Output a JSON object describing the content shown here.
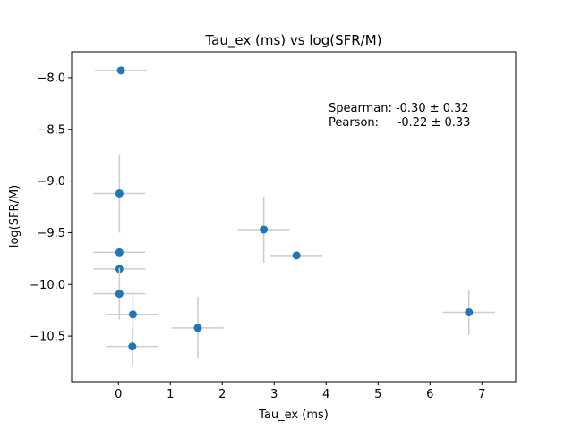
{
  "chart_data": {
    "type": "scatter",
    "title": "Tau_ex (ms) vs log(SFR/M)",
    "xlabel": "Tau_ex (ms)",
    "ylabel": "log(SFR/M)",
    "xlim": [
      -0.9,
      7.65
    ],
    "ylim": [
      -10.94,
      -7.75
    ],
    "xticks": [
      0,
      1,
      2,
      3,
      4,
      5,
      6,
      7
    ],
    "yticks": [
      -10.5,
      -10.0,
      -9.5,
      -9.0,
      -8.5,
      -8.0
    ],
    "ytick_labels": [
      "−10.5",
      "−10.0",
      "−9.5",
      "−9.0",
      "−8.5",
      "−8.0"
    ],
    "grid": false,
    "point_color": "#1f77b4",
    "errorbar_color": "#cccccc",
    "points": [
      {
        "x": 0.05,
        "y": -7.93,
        "xerr": 0.5,
        "yerr": 0.0
      },
      {
        "x": 0.02,
        "y": -9.12,
        "xerr": 0.5,
        "yerr": 0.38
      },
      {
        "x": 0.02,
        "y": -9.69,
        "xerr": 0.5,
        "yerr": 0.0
      },
      {
        "x": 0.02,
        "y": -9.85,
        "xerr": 0.5,
        "yerr": 0.0
      },
      {
        "x": 0.02,
        "y": -10.09,
        "xerr": 0.5,
        "yerr": 0.25
      },
      {
        "x": 0.28,
        "y": -10.29,
        "xerr": 0.5,
        "yerr": 0.22
      },
      {
        "x": 0.27,
        "y": -10.6,
        "xerr": 0.5,
        "yerr": 0.18
      },
      {
        "x": 1.53,
        "y": -10.42,
        "xerr": 0.5,
        "yerr": 0.3
      },
      {
        "x": 2.8,
        "y": -9.47,
        "xerr": 0.5,
        "yerr": 0.32
      },
      {
        "x": 3.43,
        "y": -9.72,
        "xerr": 0.5,
        "yerr": 0.0
      },
      {
        "x": 6.75,
        "y": -10.27,
        "xerr": 0.5,
        "yerr": 0.22
      }
    ],
    "annotations": [
      {
        "text": "Spearman: -0.30 ± 0.32"
      },
      {
        "text": "Pearson:     -0.22 ± 0.33"
      }
    ]
  }
}
